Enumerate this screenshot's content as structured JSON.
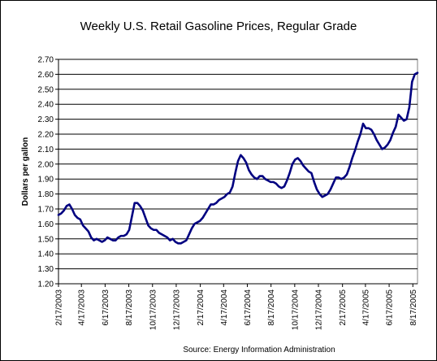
{
  "chart_data": {
    "type": "line",
    "title": "Weekly U.S. Retail Gasoline Prices, Regular Grade",
    "ylabel": "Dollars per gallon",
    "xlabel": "",
    "source": "Source:  Energy Information Administration",
    "ylim": [
      1.2,
      2.7
    ],
    "y_ticks": [
      "1.20",
      "1.30",
      "1.40",
      "1.50",
      "1.60",
      "1.70",
      "1.80",
      "1.90",
      "2.00",
      "2.10",
      "2.20",
      "2.30",
      "2.40",
      "2.50",
      "2.60",
      "2.70"
    ],
    "x_ticks": [
      "2/17/2003",
      "4/17/2003",
      "6/17/2003",
      "8/17/2003",
      "10/17/2003",
      "12/17/2003",
      "2/17/2004",
      "4/17/2004",
      "6/17/2004",
      "8/17/2004",
      "10/17/2004",
      "12/17/2004",
      "2/17/2005",
      "4/17/2005",
      "6/17/2005",
      "8/17/2005"
    ],
    "x_range": [
      "2003-02-17",
      "2005-08-29"
    ],
    "grid": "horizontal",
    "legend": "none",
    "line_color": "#000080",
    "series": [
      {
        "name": "",
        "points": [
          [
            "2003-02-17",
            1.66
          ],
          [
            "2003-02-24",
            1.67
          ],
          [
            "2003-03-03",
            1.69
          ],
          [
            "2003-03-10",
            1.72
          ],
          [
            "2003-03-17",
            1.73
          ],
          [
            "2003-03-24",
            1.7
          ],
          [
            "2003-03-31",
            1.66
          ],
          [
            "2003-04-07",
            1.64
          ],
          [
            "2003-04-14",
            1.63
          ],
          [
            "2003-04-21",
            1.59
          ],
          [
            "2003-04-28",
            1.57
          ],
          [
            "2003-05-05",
            1.55
          ],
          [
            "2003-05-12",
            1.51
          ],
          [
            "2003-05-19",
            1.49
          ],
          [
            "2003-05-26",
            1.5
          ],
          [
            "2003-06-02",
            1.49
          ],
          [
            "2003-06-09",
            1.48
          ],
          [
            "2003-06-16",
            1.49
          ],
          [
            "2003-06-23",
            1.51
          ],
          [
            "2003-06-30",
            1.5
          ],
          [
            "2003-07-07",
            1.49
          ],
          [
            "2003-07-14",
            1.49
          ],
          [
            "2003-07-21",
            1.51
          ],
          [
            "2003-07-28",
            1.52
          ],
          [
            "2003-08-04",
            1.52
          ],
          [
            "2003-08-11",
            1.53
          ],
          [
            "2003-08-18",
            1.56
          ],
          [
            "2003-08-25",
            1.65
          ],
          [
            "2003-09-01",
            1.74
          ],
          [
            "2003-09-08",
            1.74
          ],
          [
            "2003-09-15",
            1.72
          ],
          [
            "2003-09-22",
            1.69
          ],
          [
            "2003-09-29",
            1.64
          ],
          [
            "2003-10-06",
            1.59
          ],
          [
            "2003-10-13",
            1.57
          ],
          [
            "2003-10-20",
            1.56
          ],
          [
            "2003-10-27",
            1.56
          ],
          [
            "2003-11-03",
            1.54
          ],
          [
            "2003-11-10",
            1.53
          ],
          [
            "2003-11-17",
            1.52
          ],
          [
            "2003-11-24",
            1.51
          ],
          [
            "2003-12-01",
            1.49
          ],
          [
            "2003-12-08",
            1.5
          ],
          [
            "2003-12-15",
            1.48
          ],
          [
            "2003-12-22",
            1.47
          ],
          [
            "2003-12-29",
            1.47
          ],
          [
            "2004-01-05",
            1.48
          ],
          [
            "2004-01-12",
            1.49
          ],
          [
            "2004-01-19",
            1.53
          ],
          [
            "2004-01-26",
            1.57
          ],
          [
            "2004-02-02",
            1.6
          ],
          [
            "2004-02-09",
            1.61
          ],
          [
            "2004-02-16",
            1.62
          ],
          [
            "2004-02-23",
            1.64
          ],
          [
            "2004-03-01",
            1.67
          ],
          [
            "2004-03-08",
            1.7
          ],
          [
            "2004-03-15",
            1.73
          ],
          [
            "2004-03-22",
            1.73
          ],
          [
            "2004-03-29",
            1.74
          ],
          [
            "2004-04-05",
            1.76
          ],
          [
            "2004-04-12",
            1.77
          ],
          [
            "2004-04-19",
            1.78
          ],
          [
            "2004-04-26",
            1.8
          ],
          [
            "2004-05-03",
            1.81
          ],
          [
            "2004-05-10",
            1.85
          ],
          [
            "2004-05-17",
            1.94
          ],
          [
            "2004-05-24",
            2.02
          ],
          [
            "2004-05-31",
            2.06
          ],
          [
            "2004-06-07",
            2.04
          ],
          [
            "2004-06-14",
            2.01
          ],
          [
            "2004-06-21",
            1.96
          ],
          [
            "2004-06-28",
            1.93
          ],
          [
            "2004-07-05",
            1.91
          ],
          [
            "2004-07-12",
            1.9
          ],
          [
            "2004-07-19",
            1.92
          ],
          [
            "2004-07-26",
            1.92
          ],
          [
            "2004-08-02",
            1.9
          ],
          [
            "2004-08-09",
            1.89
          ],
          [
            "2004-08-16",
            1.88
          ],
          [
            "2004-08-23",
            1.88
          ],
          [
            "2004-08-30",
            1.87
          ],
          [
            "2004-09-06",
            1.85
          ],
          [
            "2004-09-13",
            1.84
          ],
          [
            "2004-09-20",
            1.85
          ],
          [
            "2004-09-27",
            1.89
          ],
          [
            "2004-10-04",
            1.94
          ],
          [
            "2004-10-11",
            2.0
          ],
          [
            "2004-10-18",
            2.03
          ],
          [
            "2004-10-25",
            2.04
          ],
          [
            "2004-11-01",
            2.02
          ],
          [
            "2004-11-08",
            1.99
          ],
          [
            "2004-11-15",
            1.97
          ],
          [
            "2004-11-22",
            1.95
          ],
          [
            "2004-11-29",
            1.94
          ],
          [
            "2004-12-06",
            1.88
          ],
          [
            "2004-12-13",
            1.83
          ],
          [
            "2004-12-20",
            1.8
          ],
          [
            "2004-12-27",
            1.78
          ],
          [
            "2005-01-03",
            1.79
          ],
          [
            "2005-01-10",
            1.8
          ],
          [
            "2005-01-17",
            1.83
          ],
          [
            "2005-01-24",
            1.87
          ],
          [
            "2005-01-31",
            1.91
          ],
          [
            "2005-02-07",
            1.91
          ],
          [
            "2005-02-14",
            1.9
          ],
          [
            "2005-02-21",
            1.91
          ],
          [
            "2005-02-28",
            1.93
          ],
          [
            "2005-03-07",
            1.98
          ],
          [
            "2005-03-14",
            2.04
          ],
          [
            "2005-03-21",
            2.09
          ],
          [
            "2005-03-28",
            2.15
          ],
          [
            "2005-04-04",
            2.2
          ],
          [
            "2005-04-11",
            2.27
          ],
          [
            "2005-04-18",
            2.24
          ],
          [
            "2005-04-25",
            2.24
          ],
          [
            "2005-05-02",
            2.23
          ],
          [
            "2005-05-09",
            2.2
          ],
          [
            "2005-05-16",
            2.16
          ],
          [
            "2005-05-23",
            2.13
          ],
          [
            "2005-05-30",
            2.1
          ],
          [
            "2005-06-06",
            2.11
          ],
          [
            "2005-06-13",
            2.13
          ],
          [
            "2005-06-20",
            2.16
          ],
          [
            "2005-06-27",
            2.21
          ],
          [
            "2005-07-04",
            2.25
          ],
          [
            "2005-07-11",
            2.33
          ],
          [
            "2005-07-18",
            2.31
          ],
          [
            "2005-07-25",
            2.29
          ],
          [
            "2005-08-01",
            2.3
          ],
          [
            "2005-08-08",
            2.38
          ],
          [
            "2005-08-15",
            2.55
          ],
          [
            "2005-08-22",
            2.6
          ],
          [
            "2005-08-29",
            2.61
          ]
        ]
      }
    ]
  }
}
